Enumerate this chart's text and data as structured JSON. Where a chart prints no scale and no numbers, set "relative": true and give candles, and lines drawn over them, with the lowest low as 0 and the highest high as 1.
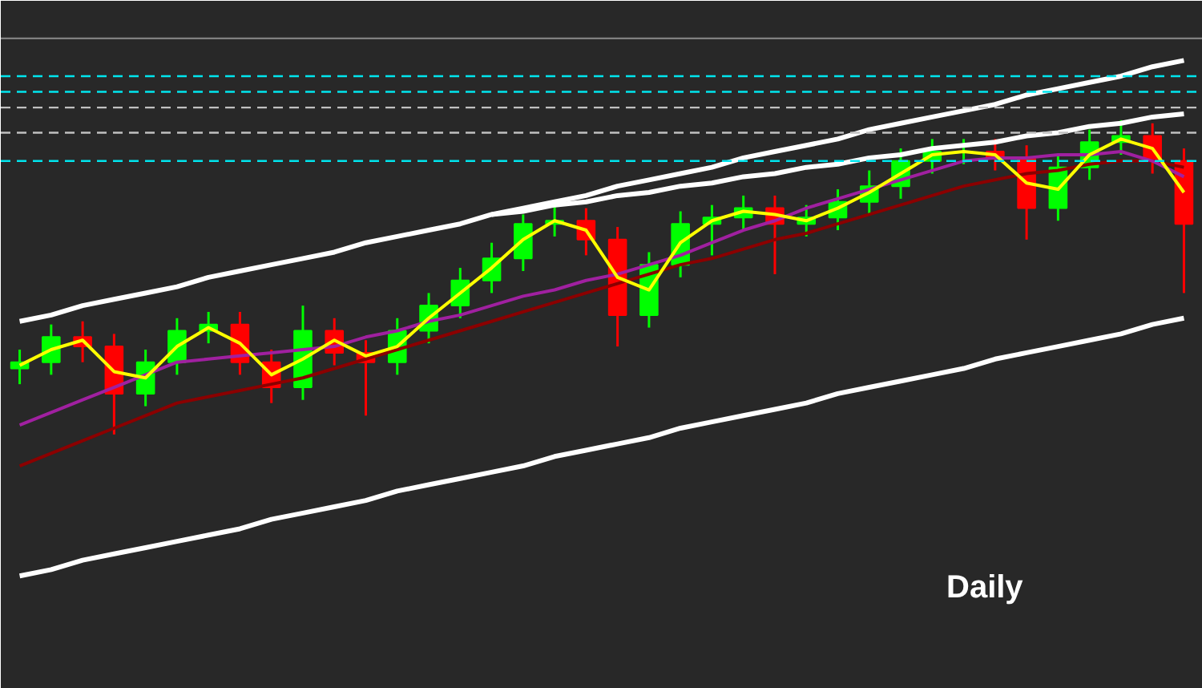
{
  "chart_data": {
    "type": "candlestick",
    "relative": true,
    "tick_labels": false,
    "grid": false,
    "categories": [
      null,
      null,
      null,
      null,
      null,
      null,
      null,
      null,
      null,
      null,
      null,
      null,
      null,
      null,
      null,
      null,
      null,
      null,
      null,
      null,
      null,
      null,
      null,
      null,
      null,
      null,
      null,
      null,
      null,
      null,
      null,
      null,
      null,
      null,
      null,
      null,
      null,
      null
    ],
    "ohlc": [
      [
        0.21,
        0.27,
        0.16,
        0.23
      ],
      [
        0.23,
        0.35,
        0.19,
        0.31
      ],
      [
        0.31,
        0.36,
        0.23,
        0.28
      ],
      [
        0.28,
        0.32,
        0,
        0.13
      ],
      [
        0.13,
        0.27,
        0.09,
        0.23
      ],
      [
        0.23,
        0.37,
        0.19,
        0.33
      ],
      [
        0.33,
        0.39,
        0.29,
        0.35
      ],
      [
        0.35,
        0.39,
        0.19,
        0.23
      ],
      [
        0.23,
        0.27,
        0.1,
        0.15
      ],
      [
        0.15,
        0.41,
        0.11,
        0.33
      ],
      [
        0.33,
        0.37,
        0.22,
        0.26
      ],
      [
        0.26,
        0.3,
        0.06,
        0.23
      ],
      [
        0.23,
        0.37,
        0.19,
        0.33
      ],
      [
        0.33,
        0.45,
        0.29,
        0.41
      ],
      [
        0.41,
        0.53,
        0.37,
        0.49
      ],
      [
        0.49,
        0.61,
        0.45,
        0.56
      ],
      [
        0.56,
        0.7,
        0.52,
        0.67
      ],
      [
        0.67,
        0.73,
        0.63,
        0.68
      ],
      [
        0.68,
        0.72,
        0.57,
        0.62
      ],
      [
        0.62,
        0.66,
        0.28,
        0.38
      ],
      [
        0.38,
        0.58,
        0.34,
        0.54
      ],
      [
        0.54,
        0.71,
        0.5,
        0.67
      ],
      [
        0.67,
        0.73,
        0.57,
        0.69
      ],
      [
        0.69,
        0.76,
        0.65,
        0.72
      ],
      [
        0.72,
        0.76,
        0.51,
        0.67
      ],
      [
        0.67,
        0.73,
        0.63,
        0.69
      ],
      [
        0.69,
        0.78,
        0.65,
        0.74
      ],
      [
        0.74,
        0.84,
        0.7,
        0.79
      ],
      [
        0.79,
        0.91,
        0.75,
        0.87
      ],
      [
        0.87,
        0.94,
        0.83,
        0.9
      ],
      [
        0.9,
        0.94,
        0.86,
        0.9
      ],
      [
        0.9,
        0.94,
        0.84,
        0.88
      ],
      [
        0.88,
        0.92,
        0.62,
        0.72
      ],
      [
        0.72,
        0.89,
        0.68,
        0.85
      ],
      [
        0.85,
        0.97,
        0.81,
        0.93
      ],
      [
        0.93,
        1,
        0.89,
        0.95
      ],
      [
        0.95,
        0.99,
        0.83,
        0.87
      ],
      [
        0.87,
        0.91,
        0.45,
        0.67
      ]
    ],
    "colors": [
      "#00ff00",
      "#00ff00",
      "#ff0000",
      "#ff0000",
      "#00ff00",
      "#00ff00",
      "#00ff00",
      "#ff0000",
      "#ff0000",
      "#00ff00",
      "#ff0000",
      "#ff0000",
      "#00ff00",
      "#00ff00",
      "#00ff00",
      "#00ff00",
      "#00ff00",
      "#00ff00",
      "#ff0000",
      "#ff0000",
      "#00ff00",
      "#00ff00",
      "#00ff00",
      "#00ff00",
      "#ff0000",
      "#00ff00",
      "#00ff00",
      "#00ff00",
      "#00ff00",
      "#00ff00",
      "#00ff00",
      "#ff0000",
      "#ff0000",
      "#00ff00",
      "#00ff00",
      "#00ff00",
      "#ff0000",
      "#ff0000"
    ],
    "series": [
      {
        "type": "line",
        "color": "#8b0000",
        "values": [
          -0.1,
          -0.06,
          -0.02,
          0.02,
          0.06,
          0.1,
          0.12,
          0.14,
          0.16,
          0.18,
          0.21,
          0.24,
          0.27,
          0.3,
          0.33,
          0.36,
          0.39,
          0.42,
          0.45,
          0.48,
          0.51,
          0.54,
          0.56,
          0.59,
          0.62,
          0.64,
          0.67,
          0.7,
          0.73,
          0.76,
          0.79,
          0.81,
          0.83,
          0.84,
          0.86,
          0.87,
          0.87,
          0.85
        ]
      },
      {
        "type": "line",
        "color": "#a020a0",
        "values": [
          0.03,
          0.07,
          0.11,
          0.15,
          0.19,
          0.23,
          0.24,
          0.25,
          0.26,
          0.27,
          0.28,
          0.31,
          0.33,
          0.36,
          0.38,
          0.41,
          0.44,
          0.46,
          0.49,
          0.51,
          0.54,
          0.57,
          0.61,
          0.65,
          0.68,
          0.72,
          0.75,
          0.78,
          0.81,
          0.84,
          0.87,
          0.88,
          0.88,
          0.89,
          0.89,
          0.9,
          0.87,
          0.82
        ]
      },
      {
        "type": "line",
        "color": "#ffff00",
        "values": [
          0.22,
          0.27,
          0.3,
          0.2,
          0.18,
          0.28,
          0.34,
          0.29,
          0.19,
          0.24,
          0.3,
          0.25,
          0.28,
          0.37,
          0.45,
          0.53,
          0.62,
          0.68,
          0.65,
          0.5,
          0.46,
          0.61,
          0.68,
          0.71,
          0.7,
          0.68,
          0.72,
          0.77,
          0.83,
          0.89,
          0.9,
          0.89,
          0.8,
          0.78,
          0.89,
          0.94,
          0.91,
          0.77
        ]
      },
      {
        "type": "line",
        "color": "#ffffff",
        "values": [
          0.36,
          0.38,
          0.41,
          0.43,
          0.45,
          0.47,
          0.5,
          0.52,
          0.54,
          0.56,
          0.58,
          0.61,
          0.63,
          0.65,
          0.67,
          0.7,
          0.72,
          0.74,
          0.76,
          0.79,
          0.81,
          0.83,
          0.85,
          0.88,
          0.9,
          0.92,
          0.94,
          0.97,
          0.99,
          1.01,
          1.03,
          1.05,
          1.08,
          1.1,
          1.12,
          1.14,
          1.17,
          1.19
        ]
      },
      {
        "type": "line",
        "color": "#ffffff",
        "values": [
          null,
          null,
          null,
          null,
          null,
          null,
          null,
          null,
          null,
          null,
          null,
          null,
          null,
          null,
          null,
          0.7,
          0.71,
          0.73,
          0.74,
          0.76,
          0.77,
          0.79,
          0.8,
          0.82,
          0.83,
          0.85,
          0.86,
          0.88,
          0.89,
          0.91,
          0.92,
          0.93,
          0.95,
          0.96,
          0.98,
          0.99,
          1.01,
          1.02
        ]
      },
      {
        "type": "line",
        "color": "#ffffff",
        "values": [
          -0.45,
          -0.43,
          -0.4,
          -0.38,
          -0.36,
          -0.34,
          -0.32,
          -0.3,
          -0.27,
          -0.25,
          -0.23,
          -0.21,
          -0.18,
          -0.16,
          -0.14,
          -0.12,
          -0.1,
          -0.07,
          -0.05,
          -0.03,
          -0.01,
          0.02,
          0.04,
          0.06,
          0.08,
          0.1,
          0.13,
          0.15,
          0.17,
          0.19,
          0.21,
          0.24,
          0.26,
          0.28,
          0.3,
          0.32,
          0.35,
          0.37
        ]
      }
    ],
    "ref_lines": [
      {
        "axis": "y",
        "value": 1.26,
        "color": "#808080",
        "line_style": "solid"
      },
      {
        "axis": "y",
        "value": 1.14,
        "color": "#00e5ee",
        "line_style": "dashed"
      },
      {
        "axis": "y",
        "value": 1.09,
        "color": "#00e5ee",
        "line_style": "dashed"
      },
      {
        "axis": "y",
        "value": 1.04,
        "color": "#c0c0c0",
        "line_style": "dashed"
      },
      {
        "axis": "y",
        "value": 0.96,
        "color": "#c0c0c0",
        "line_style": "dashed"
      },
      {
        "axis": "y",
        "value": 0.87,
        "color": "#00e5ee",
        "line_style": "dashed"
      }
    ],
    "annotations": [
      "Daily"
    ]
  }
}
